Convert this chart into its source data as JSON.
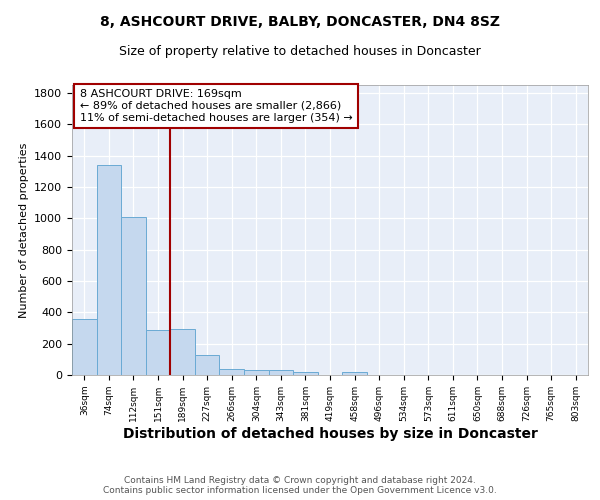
{
  "title": "8, ASHCOURT DRIVE, BALBY, DONCASTER, DN4 8SZ",
  "subtitle": "Size of property relative to detached houses in Doncaster",
  "xlabel": "Distribution of detached houses by size in Doncaster",
  "ylabel": "Number of detached properties",
  "bar_values": [
    355,
    1340,
    1005,
    285,
    295,
    130,
    40,
    35,
    30,
    18,
    0,
    18,
    0,
    0,
    0,
    0,
    0,
    0,
    0,
    0,
    0
  ],
  "categories": [
    "36sqm",
    "74sqm",
    "112sqm",
    "151sqm",
    "189sqm",
    "227sqm",
    "266sqm",
    "304sqm",
    "343sqm",
    "381sqm",
    "419sqm",
    "458sqm",
    "496sqm",
    "534sqm",
    "573sqm",
    "611sqm",
    "650sqm",
    "688sqm",
    "726sqm",
    "765sqm",
    "803sqm"
  ],
  "bar_color": "#c5d8ee",
  "bar_edge_color": "#6aaad4",
  "bar_width": 1.0,
  "red_line_x": 3.5,
  "red_line_color": "#a00000",
  "annotation_text": "8 ASHCOURT DRIVE: 169sqm\n← 89% of detached houses are smaller (2,866)\n11% of semi-detached houses are larger (354) →",
  "annotation_box_color": "white",
  "annotation_box_edge": "#a00000",
  "ylim": [
    0,
    1850
  ],
  "yticks": [
    0,
    200,
    400,
    600,
    800,
    1000,
    1200,
    1400,
    1600,
    1800
  ],
  "bg_color": "#e8eef8",
  "footer_text": "Contains HM Land Registry data © Crown copyright and database right 2024.\nContains public sector information licensed under the Open Government Licence v3.0.",
  "title_fontsize": 10,
  "subtitle_fontsize": 9,
  "xlabel_fontsize": 10,
  "ylabel_fontsize": 8,
  "footer_fontsize": 6.5,
  "annotation_fontsize": 8
}
